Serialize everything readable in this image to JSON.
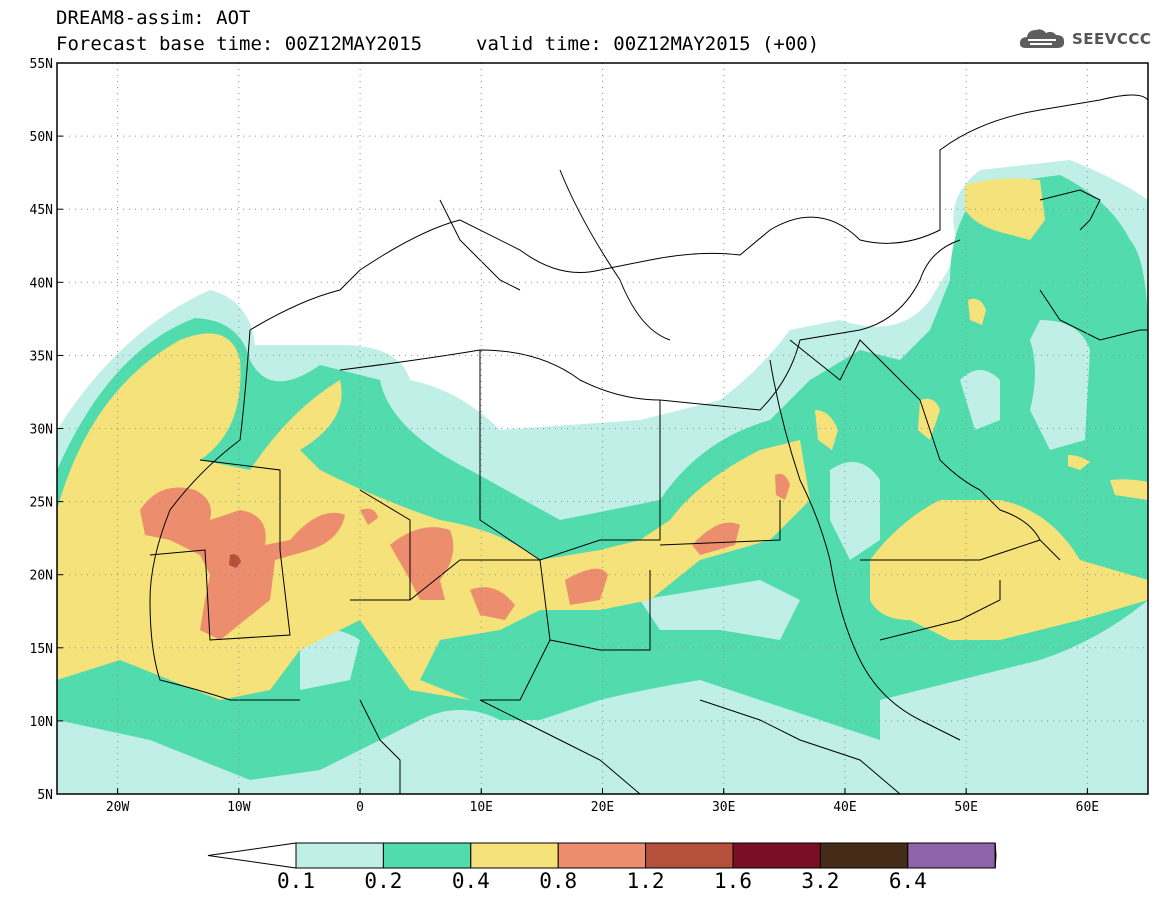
{
  "header": {
    "line1": "DREAM8-assim: AOT",
    "base_time": "Forecast base time: 00Z12MAY2015",
    "valid_time": "valid time: 00Z12MAY2015 (+00)",
    "logo_text": "SEEVCCC",
    "logo_icon": "cloud-icon"
  },
  "map": {
    "lon_range": [
      -25,
      65
    ],
    "lat_range": [
      5,
      55
    ],
    "lon_labels": [
      "20W",
      "10W",
      "0",
      "10E",
      "20E",
      "30E",
      "40E",
      "50E",
      "60E"
    ],
    "lat_labels": [
      "55N",
      "50N",
      "45N",
      "40N",
      "35N",
      "30N",
      "25N",
      "20N",
      "15N",
      "10N",
      "5N"
    ],
    "grid": "dotted",
    "field": "AOT"
  },
  "colorbar": {
    "levels": [
      "0.1",
      "0.2",
      "0.4",
      "0.8",
      "1.2",
      "1.6",
      "3.2",
      "6.4"
    ],
    "colors": [
      "#ffffff",
      "#bfefe6",
      "#52dcae",
      "#f5e27b",
      "#ec8e6e",
      "#b4503c",
      "#7a0e25",
      "#442c18",
      "#8e63a8"
    ]
  }
}
